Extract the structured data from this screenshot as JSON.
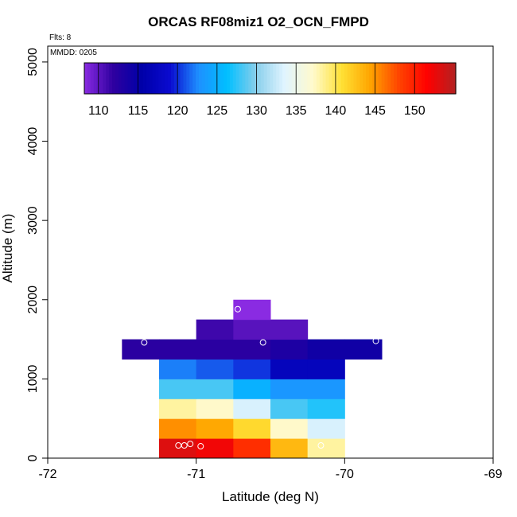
{
  "chart_data": {
    "type": "heatmap",
    "title": "ORCAS RF08miz1 O2_OCN_FMPD",
    "flights_note": "Flts: 8",
    "date_note": "MMDD: 0205",
    "xlabel": "Latitude (deg N)",
    "ylabel": "Altitude (m)",
    "xlim": [
      -72,
      -69
    ],
    "ylim": [
      0,
      5200
    ],
    "x_ticks": [
      -72,
      -71,
      -70,
      -69
    ],
    "y_ticks": [
      0,
      1000,
      2000,
      3000,
      4000,
      5000
    ],
    "colorbar": {
      "min": 107,
      "max": 154,
      "ticks": [
        110,
        115,
        120,
        125,
        130,
        135,
        140,
        145,
        150
      ],
      "colors": [
        "#8a2be2",
        "#2f00a0",
        "#0000a8",
        "#0a0ad0",
        "#1e90ff",
        "#00bfff",
        "#87ceeb",
        "#e0f4ff",
        "#fffacd",
        "#ffe135",
        "#ffa500",
        "#ff4500",
        "#ff0000",
        "#b22222"
      ]
    },
    "cell_width_deg": 0.25,
    "cell_height_m": 250,
    "cells": [
      {
        "lat": -71.25,
        "alt": 0,
        "value": 152
      },
      {
        "lat": -71.0,
        "alt": 0,
        "value": 151
      },
      {
        "lat": -70.75,
        "alt": 0,
        "value": 148
      },
      {
        "lat": -70.5,
        "alt": 0,
        "value": 142
      },
      {
        "lat": -70.25,
        "alt": 0,
        "value": 137
      },
      {
        "lat": -71.25,
        "alt": 250,
        "value": 144
      },
      {
        "lat": -71.0,
        "alt": 250,
        "value": 143
      },
      {
        "lat": -70.75,
        "alt": 250,
        "value": 140
      },
      {
        "lat": -70.5,
        "alt": 250,
        "value": 136
      },
      {
        "lat": -70.25,
        "alt": 250,
        "value": 132
      },
      {
        "lat": -71.25,
        "alt": 500,
        "value": 137
      },
      {
        "lat": -71.0,
        "alt": 500,
        "value": 136
      },
      {
        "lat": -70.75,
        "alt": 500,
        "value": 132
      },
      {
        "lat": -70.5,
        "alt": 500,
        "value": 127
      },
      {
        "lat": -70.25,
        "alt": 500,
        "value": 126
      },
      {
        "lat": -71.25,
        "alt": 750,
        "value": 127
      },
      {
        "lat": -71.0,
        "alt": 750,
        "value": 127
      },
      {
        "lat": -70.75,
        "alt": 750,
        "value": 124
      },
      {
        "lat": -70.5,
        "alt": 750,
        "value": 122
      },
      {
        "lat": -70.25,
        "alt": 750,
        "value": 122
      },
      {
        "lat": -71.25,
        "alt": 1000,
        "value": 121
      },
      {
        "lat": -71.0,
        "alt": 1000,
        "value": 120
      },
      {
        "lat": -70.75,
        "alt": 1000,
        "value": 119
      },
      {
        "lat": -70.5,
        "alt": 1000,
        "value": 116
      },
      {
        "lat": -70.25,
        "alt": 1000,
        "value": 116
      },
      {
        "lat": -71.5,
        "alt": 1250,
        "value": 111
      },
      {
        "lat": -71.25,
        "alt": 1250,
        "value": 111
      },
      {
        "lat": -71.0,
        "alt": 1250,
        "value": 111
      },
      {
        "lat": -70.75,
        "alt": 1250,
        "value": 111
      },
      {
        "lat": -70.5,
        "alt": 1250,
        "value": 112
      },
      {
        "lat": -70.25,
        "alt": 1250,
        "value": 113
      },
      {
        "lat": -70.0,
        "alt": 1250,
        "value": 113
      },
      {
        "lat": -71.0,
        "alt": 1500,
        "value": 110
      },
      {
        "lat": -70.75,
        "alt": 1500,
        "value": 109
      },
      {
        "lat": -70.5,
        "alt": 1500,
        "value": 109
      },
      {
        "lat": -70.75,
        "alt": 1750,
        "value": 107
      }
    ],
    "observation_points": [
      {
        "lat": -71.12,
        "alt": 160
      },
      {
        "lat": -71.08,
        "alt": 160
      },
      {
        "lat": -71.04,
        "alt": 180
      },
      {
        "lat": -70.97,
        "alt": 150
      },
      {
        "lat": -70.16,
        "alt": 160
      },
      {
        "lat": -71.35,
        "alt": 1460
      },
      {
        "lat": -70.55,
        "alt": 1460
      },
      {
        "lat": -69.79,
        "alt": 1480
      },
      {
        "lat": -70.72,
        "alt": 1880
      }
    ]
  }
}
